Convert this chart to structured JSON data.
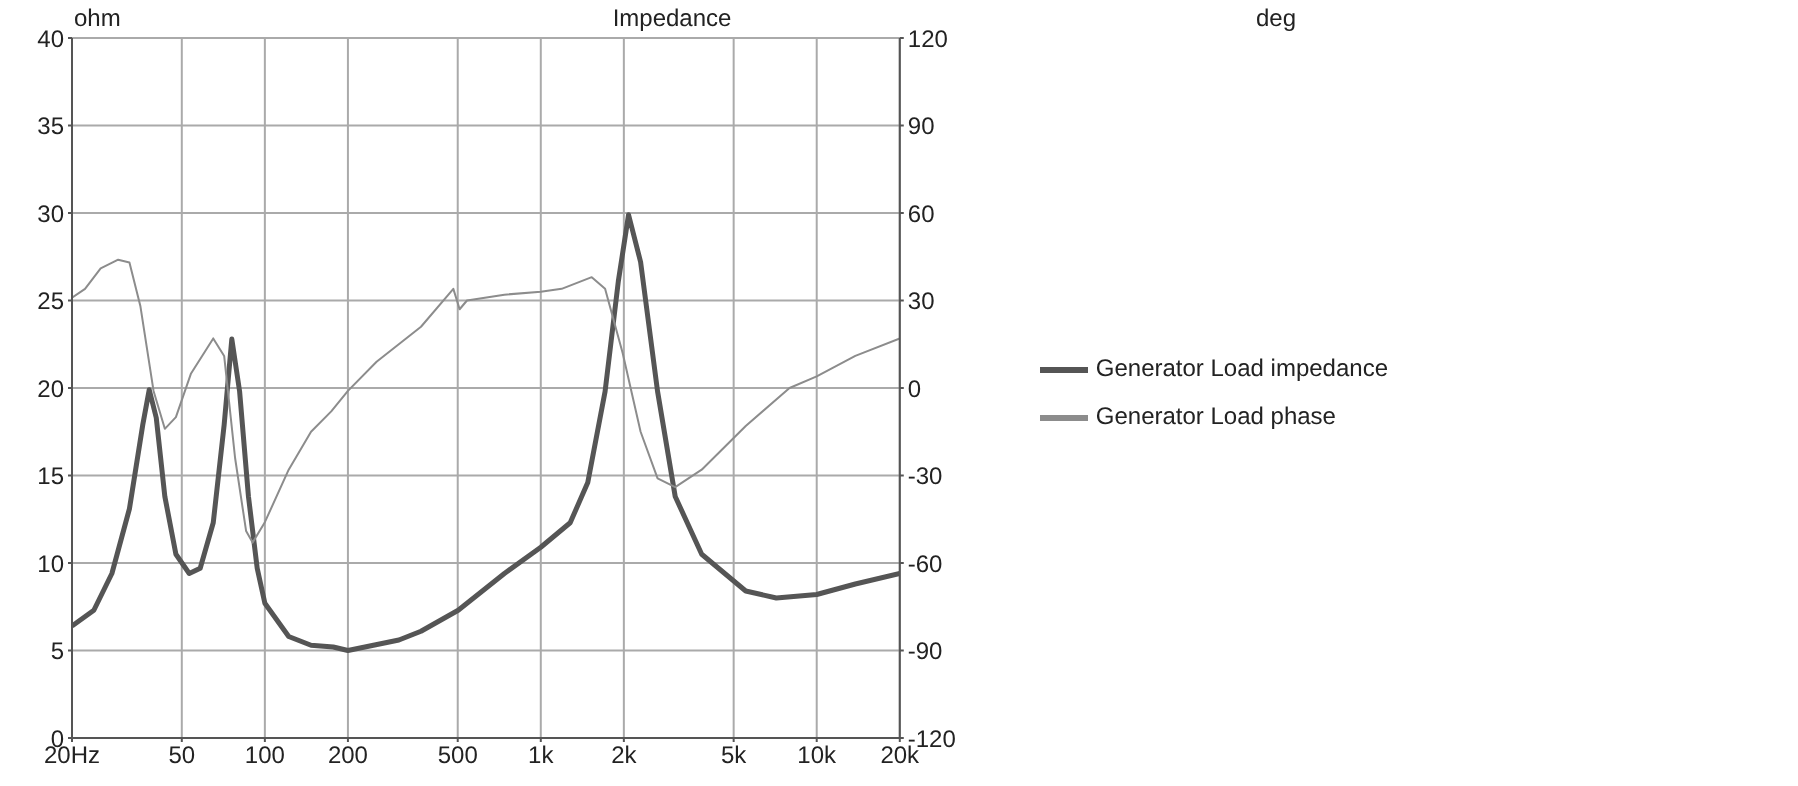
{
  "chart_data": {
    "type": "line",
    "title": "Impedance",
    "ylabel": "ohm",
    "annotations": [
      "deg"
    ],
    "log": "x",
    "grid": true,
    "legend": "right",
    "xlim": [
      20,
      20000
    ],
    "xticks": [
      {
        "value": 20,
        "label": "20Hz"
      },
      50,
      100,
      200,
      500,
      {
        "value": 1000,
        "label": "1k"
      },
      {
        "value": 2000,
        "label": "2k"
      },
      {
        "value": 5000,
        "label": "5k"
      },
      {
        "value": 10000,
        "label": "10k"
      },
      {
        "value": 20000,
        "label": "20k"
      }
    ],
    "ylim": [
      0,
      40
    ],
    "yticks": [
      0,
      5,
      10,
      15,
      20,
      25,
      30,
      35,
      40
    ],
    "y2lim": [
      -120,
      120
    ],
    "y2ticks": [
      -120,
      -90,
      -60,
      -30,
      0,
      30,
      60,
      90,
      120
    ],
    "series": [
      {
        "name": "Generator Load impedance",
        "color": "#555555",
        "x": [
          20,
          24,
          27.9,
          32.3,
          36.1,
          38.1,
          40.4,
          43.4,
          47.6,
          53.2,
          58.3,
          65,
          71.2,
          75.9,
          81,
          87.2,
          93.8,
          100,
          122,
          147,
          177,
          200,
          306,
          368,
          502,
          738,
          1000,
          1278,
          1480,
          1710,
          1910,
          2080,
          2300,
          2650,
          3070,
          3830,
          5530,
          7140,
          10000,
          13800,
          20000
        ],
        "values": [
          6.4,
          7.3,
          9.4,
          13.1,
          17.9,
          19.9,
          18.3,
          13.8,
          10.5,
          9.4,
          9.7,
          12.3,
          17.9,
          22.8,
          19.8,
          13.8,
          9.7,
          7.7,
          5.8,
          5.3,
          5.2,
          5.0,
          5.6,
          6.1,
          7.3,
          9.4,
          10.9,
          12.3,
          14.6,
          19.8,
          26.1,
          29.9,
          27.2,
          19.8,
          13.8,
          10.5,
          8.4,
          8.0,
          8.2,
          8.8,
          9.4
        ]
      },
      {
        "name": "Generator Load phase",
        "color": "#8c8c8c",
        "axis": "y2",
        "x": [
          20,
          22.3,
          25.4,
          29.4,
          32.3,
          35.4,
          39.5,
          43.4,
          47.6,
          54,
          65,
          71.2,
          78,
          85.5,
          90.3,
          100,
          122,
          147,
          174,
          200,
          254,
          368,
          482,
          508,
          540,
          738,
          1000,
          1190,
          1530,
          1710,
          1980,
          2300,
          2650,
          3070,
          3830,
          5530,
          7970,
          10000,
          13800,
          20000
        ],
        "values": [
          31,
          34,
          41,
          44,
          43,
          28,
          -1,
          -14,
          -10,
          5,
          17,
          11,
          -24,
          -49,
          -53,
          -46,
          -28,
          -15,
          -8,
          -1,
          9,
          21,
          34,
          27,
          30,
          32,
          33,
          34,
          38,
          34,
          12,
          -15,
          -31,
          -34,
          -28,
          -13,
          0,
          4,
          11,
          17
        ]
      }
    ]
  }
}
